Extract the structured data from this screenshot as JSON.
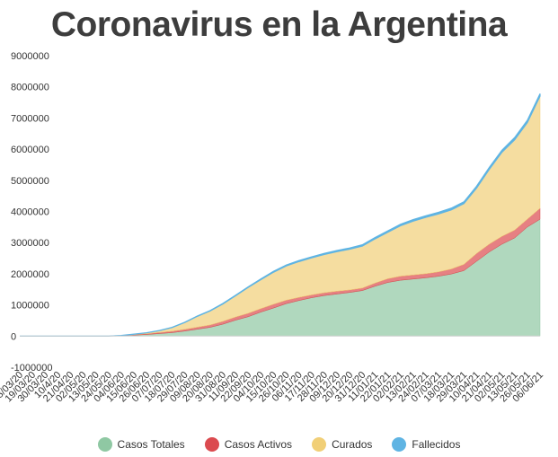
{
  "chart_data": {
    "type": "area",
    "title": "Coronavirus en la Argentina",
    "ylim": [
      -1000000,
      9000000
    ],
    "yticks": [
      9000000,
      8000000,
      7000000,
      6000000,
      5000000,
      4000000,
      3000000,
      2000000,
      1000000,
      0,
      -1000000
    ],
    "categories": [
      "08/03/20",
      "19/03/20",
      "30/03/20",
      "10/4/20",
      "21/04/20",
      "02/05/20",
      "13/05/20",
      "24/05/20",
      "04/06/20",
      "15/06/20",
      "26/06/20",
      "07/07/20",
      "18/07/20",
      "29/07/20",
      "09/08/20",
      "20/08/20",
      "31/08/20",
      "11/09/20",
      "22/09/20",
      "04/10/20",
      "15/10/20",
      "26/10/20",
      "06/11/20",
      "17/11/20",
      "28/11/20",
      "09/12/20",
      "20/12/20",
      "31/12/20",
      "11/01/21",
      "22/01/21",
      "02/02/21",
      "13/02/21",
      "24/02/21",
      "07/03/21",
      "18/03/21",
      "29/03/21",
      "10/04/21",
      "21/04/21",
      "02/05/21",
      "13/05/21",
      "26/05/21",
      "06/06/21"
    ],
    "series": [
      {
        "name": "Casos Totales",
        "color": "#8fc8a3",
        "values": [
          0,
          0,
          0,
          0,
          0,
          0,
          0,
          0,
          10000,
          30000,
          50000,
          80000,
          110000,
          160000,
          220000,
          280000,
          380000,
          510000,
          620000,
          770000,
          900000,
          1040000,
          1140000,
          1230000,
          1300000,
          1350000,
          1400000,
          1460000,
          1600000,
          1720000,
          1790000,
          1830000,
          1870000,
          1920000,
          1990000,
          2100000,
          2400000,
          2700000,
          2950000,
          3150000,
          3500000,
          3750000
        ]
      },
      {
        "name": "Casos Activos",
        "color": "#db4a4f",
        "values": [
          0,
          0,
          0,
          0,
          0,
          0,
          0,
          0,
          5000,
          15000,
          25000,
          35000,
          45000,
          55000,
          65000,
          75000,
          90000,
          100000,
          110000,
          110000,
          120000,
          110000,
          100000,
          90000,
          90000,
          90000,
          80000,
          80000,
          100000,
          120000,
          130000,
          130000,
          130000,
          140000,
          160000,
          200000,
          250000,
          250000,
          250000,
          250000,
          250000,
          350000
        ]
      },
      {
        "name": "Curados",
        "color": "#f1cf77",
        "values": [
          0,
          0,
          0,
          0,
          0,
          0,
          0,
          0,
          5000,
          15000,
          30000,
          60000,
          120000,
          220000,
          350000,
          450000,
          560000,
          680000,
          830000,
          930000,
          1030000,
          1100000,
          1150000,
          1190000,
          1230000,
          1270000,
          1310000,
          1350000,
          1420000,
          1490000,
          1620000,
          1730000,
          1810000,
          1860000,
          1900000,
          1950000,
          2100000,
          2400000,
          2700000,
          2900000,
          3100000,
          3600000
        ]
      },
      {
        "name": "Fallecidos",
        "color": "#5fb4e3",
        "values": [
          0,
          0,
          0,
          0,
          0,
          0,
          0,
          0,
          1000,
          2000,
          3000,
          4000,
          5000,
          8000,
          10000,
          12000,
          15000,
          18000,
          20000,
          25000,
          28000,
          30000,
          32000,
          34000,
          35000,
          37000,
          38000,
          40000,
          42000,
          45000,
          47000,
          49000,
          51000,
          53000,
          55000,
          57000,
          60000,
          63000,
          67000,
          71000,
          75000,
          80000
        ]
      }
    ],
    "legend": "bottom",
    "stacked": true,
    "grid": false
  }
}
